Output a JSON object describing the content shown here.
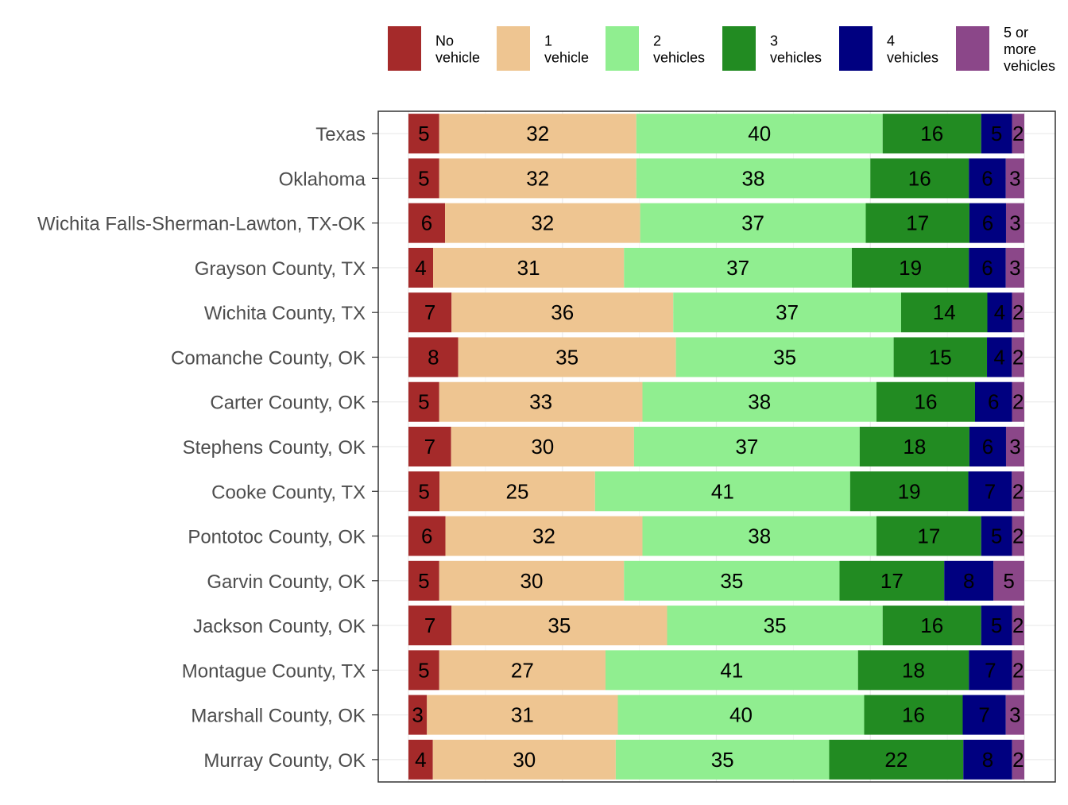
{
  "chart_data": {
    "type": "bar",
    "orientation": "horizontal",
    "stacked": true,
    "normalized_percent": true,
    "legend_position": "top",
    "grid": true,
    "categories": [
      "Texas",
      "Oklahoma",
      "Wichita Falls-Sherman-Lawton, TX-OK",
      "Grayson County, TX",
      "Wichita County, TX",
      "Comanche County, OK",
      "Carter County, OK",
      "Stephens County, OK",
      "Cooke County, TX",
      "Pontotoc County, OK",
      "Garvin County, OK",
      "Jackson County, OK",
      "Montague County, TX",
      "Marshall County, OK",
      "Murray County, OK"
    ],
    "series": [
      {
        "name": "No vehicle",
        "legend_lines": [
          "No",
          "vehicle"
        ],
        "color": "#A52A2A",
        "values": [
          5,
          5,
          6,
          4,
          7,
          8,
          5,
          7,
          5,
          6,
          5,
          7,
          5,
          3,
          4
        ]
      },
      {
        "name": "1 vehicle",
        "legend_lines": [
          "1",
          "vehicle"
        ],
        "color": "#EEC591",
        "values": [
          32,
          32,
          32,
          31,
          36,
          35,
          33,
          30,
          25,
          32,
          30,
          35,
          27,
          31,
          30
        ]
      },
      {
        "name": "2 vehicles",
        "legend_lines": [
          "2",
          "vehicles"
        ],
        "color": "#90EE90",
        "values": [
          40,
          38,
          37,
          37,
          37,
          35,
          38,
          37,
          41,
          38,
          35,
          35,
          41,
          40,
          35
        ]
      },
      {
        "name": "3 vehicles",
        "legend_lines": [
          "3",
          "vehicles"
        ],
        "color": "#228B22",
        "values": [
          16,
          16,
          17,
          19,
          14,
          15,
          16,
          18,
          19,
          17,
          17,
          16,
          18,
          16,
          22
        ]
      },
      {
        "name": "4 vehicles",
        "legend_lines": [
          "4",
          "vehicles"
        ],
        "color": "#000080",
        "values": [
          5,
          6,
          6,
          6,
          4,
          4,
          6,
          6,
          7,
          5,
          8,
          5,
          7,
          7,
          8
        ]
      },
      {
        "name": "5 or more vehicles",
        "legend_lines": [
          "5 or",
          "more",
          "vehicles"
        ],
        "color": "#8B4789",
        "values": [
          2,
          3,
          3,
          3,
          2,
          2,
          2,
          3,
          2,
          2,
          5,
          2,
          2,
          3,
          2
        ]
      }
    ]
  }
}
